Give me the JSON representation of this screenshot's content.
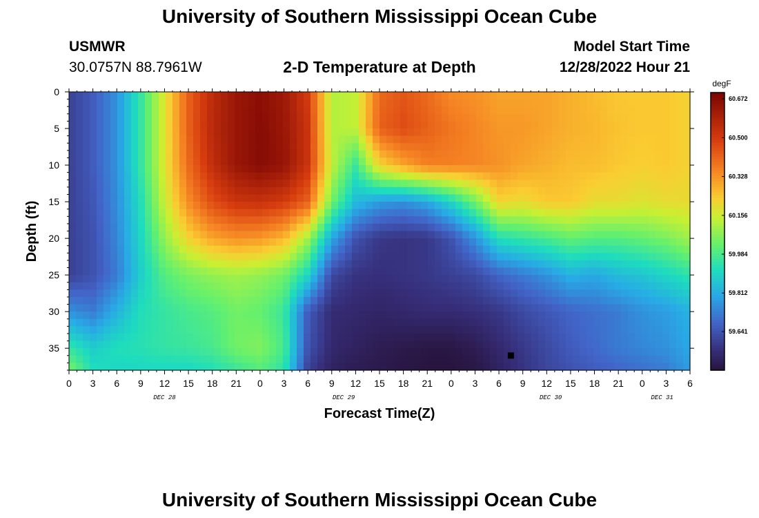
{
  "header": {
    "title_top": "University of Southern Mississippi Ocean Cube",
    "title_bottom": "University of Southern Mississippi Ocean Cube",
    "station_id": "USMWR",
    "station_coords": "30.0757N  88.7961W",
    "subtitle": "2-D Temperature at Depth",
    "model_label": "Model Start Time",
    "model_time": "12/28/2022 Hour 21"
  },
  "chart_data": {
    "type": "heatmap",
    "title": "2-D Temperature at Depth",
    "xlabel": "Forecast Time(Z)",
    "ylabel": "Depth (ft)",
    "units": "degF",
    "xlim_hours": [
      0,
      78
    ],
    "ylim_ft": [
      0,
      38
    ],
    "x_tick_labels": [
      "0",
      "3",
      "6",
      "9",
      "12",
      "15",
      "18",
      "21",
      "0",
      "3",
      "6",
      "9",
      "12",
      "15",
      "18",
      "21",
      "0",
      "3",
      "6",
      "9",
      "12",
      "15",
      "18",
      "21",
      "0",
      "3",
      "6"
    ],
    "x_day_labels": [
      {
        "label": "DEC 28",
        "hour": 12
      },
      {
        "label": "DEC 29",
        "hour": 34.5
      },
      {
        "label": "DEC 30",
        "hour": 60.5
      },
      {
        "label": "DEC 31",
        "hour": 74.5
      }
    ],
    "y_ticks": [
      0,
      5,
      10,
      15,
      20,
      25,
      30,
      35
    ],
    "colorbar_ticks": [
      "60.672",
      "60.500",
      "60.328",
      "60.156",
      "59.984",
      "59.812",
      "59.641"
    ],
    "colorbar_tick_values": [
      60.672,
      60.5,
      60.328,
      60.156,
      59.984,
      59.812,
      59.641
    ],
    "color_range": [
      59.47,
      60.7
    ],
    "marker": {
      "hour": 55.5,
      "depth": 36
    },
    "grid_x_hours": [
      0,
      3,
      6,
      9,
      12,
      15,
      18,
      21,
      24,
      27,
      30,
      33,
      36,
      39,
      42,
      45,
      48,
      51,
      54,
      57,
      60,
      63,
      66,
      69,
      72,
      75,
      78
    ],
    "grid_y_depths": [
      0,
      5,
      10,
      15,
      20,
      25,
      30,
      35,
      38
    ],
    "values": [
      [
        59.6,
        59.66,
        59.76,
        59.95,
        60.18,
        60.42,
        60.55,
        60.63,
        60.66,
        60.62,
        60.5,
        60.12,
        60.14,
        60.4,
        60.44,
        60.4,
        60.34,
        60.33,
        60.3,
        60.3,
        60.3,
        60.28,
        60.26,
        60.24,
        60.24,
        60.24,
        60.22
      ],
      [
        59.6,
        59.66,
        59.76,
        59.95,
        60.18,
        60.42,
        60.56,
        60.63,
        60.67,
        60.63,
        60.52,
        60.12,
        60.14,
        60.42,
        60.46,
        60.42,
        60.38,
        60.35,
        60.32,
        60.32,
        60.3,
        60.28,
        60.27,
        60.25,
        60.24,
        60.24,
        60.22
      ],
      [
        59.6,
        59.66,
        59.76,
        59.95,
        60.18,
        60.4,
        60.54,
        60.63,
        60.67,
        60.64,
        60.52,
        60.14,
        59.96,
        60.22,
        60.3,
        60.36,
        60.36,
        60.35,
        60.33,
        60.3,
        60.28,
        60.26,
        60.26,
        60.24,
        60.23,
        60.24,
        60.22
      ],
      [
        59.6,
        59.65,
        59.75,
        59.92,
        60.15,
        60.34,
        60.46,
        60.52,
        60.53,
        60.5,
        60.42,
        60.04,
        59.84,
        59.78,
        59.76,
        59.8,
        59.9,
        60.04,
        60.22,
        60.2,
        60.24,
        60.24,
        60.2,
        60.2,
        60.18,
        60.2,
        60.2
      ],
      [
        59.6,
        59.64,
        59.74,
        59.9,
        60.08,
        60.22,
        60.3,
        60.33,
        60.32,
        60.27,
        60.1,
        59.8,
        59.64,
        59.58,
        59.57,
        59.58,
        59.64,
        59.76,
        59.92,
        59.95,
        59.98,
        60.02,
        60.0,
        60.0,
        60.02,
        60.05,
        60.1
      ],
      [
        59.6,
        59.64,
        59.72,
        59.88,
        60.0,
        60.05,
        60.08,
        60.1,
        60.08,
        60.04,
        59.9,
        59.62,
        59.57,
        59.56,
        59.57,
        59.58,
        59.6,
        59.62,
        59.68,
        59.72,
        59.76,
        59.82,
        59.8,
        59.84,
        59.86,
        59.9,
        59.94
      ],
      [
        59.76,
        59.72,
        59.82,
        59.92,
        59.95,
        59.98,
        60.0,
        60.04,
        60.02,
        59.96,
        59.66,
        59.55,
        59.54,
        59.53,
        59.54,
        59.55,
        59.55,
        59.56,
        59.58,
        59.62,
        59.65,
        59.68,
        59.7,
        59.72,
        59.76,
        59.78,
        59.82
      ],
      [
        59.95,
        59.88,
        59.92,
        59.93,
        59.95,
        59.96,
        59.98,
        60.04,
        60.06,
        59.98,
        59.64,
        59.54,
        59.52,
        59.5,
        59.49,
        59.48,
        59.48,
        59.5,
        59.54,
        59.58,
        59.62,
        59.66,
        59.69,
        59.72,
        59.74,
        59.76,
        59.8
      ],
      [
        60.05,
        59.92,
        59.9,
        59.9,
        59.9,
        59.9,
        59.92,
        59.96,
        60.0,
        59.94,
        59.6,
        59.52,
        59.5,
        59.49,
        59.48,
        59.47,
        59.47,
        59.48,
        59.52,
        59.57,
        59.61,
        59.64,
        59.66,
        59.68,
        59.7,
        59.72,
        59.78
      ]
    ]
  }
}
